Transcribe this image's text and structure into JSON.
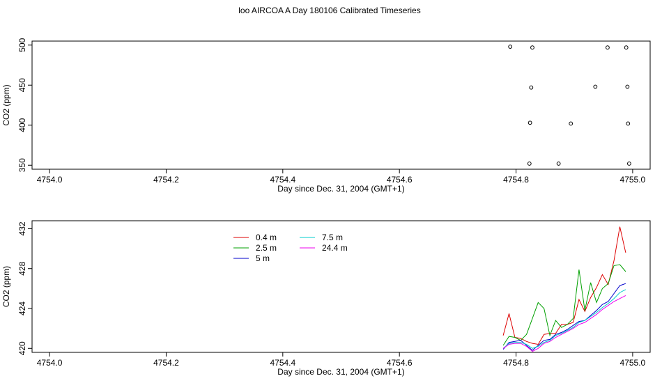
{
  "figure": {
    "title": "loo AIRCOA A  Day 180106  Calibrated Timeseries"
  },
  "chart_data": [
    {
      "type": "scatter",
      "panel": "top",
      "xlabel": "Day since Dec. 31, 2004 (GMT+1)",
      "ylabel": "CO2 (ppm)",
      "xlim": [
        4753.97,
        4755.03
      ],
      "ylim": [
        345,
        505
      ],
      "xticks": [
        4754.0,
        4754.2,
        4754.4,
        4754.6,
        4754.8,
        4755.0
      ],
      "xtick_labels": [
        "4754.0",
        "4754.2",
        "4754.4",
        "4754.6",
        "4754.8",
        "4755.0"
      ],
      "yticks": [
        350,
        400,
        450,
        500
      ],
      "ytick_labels": [
        "350",
        "400",
        "450",
        "500"
      ],
      "grid": false,
      "points": {
        "x": [
          4754.79,
          4754.828,
          4754.957,
          4754.989,
          4754.826,
          4754.936,
          4754.991,
          4754.824,
          4754.894,
          4754.992,
          4754.823,
          4754.873,
          4754.994
        ],
        "y": [
          498,
          497,
          497,
          497,
          447,
          448,
          448,
          403,
          402,
          402,
          352,
          352,
          352
        ]
      }
    },
    {
      "type": "line",
      "panel": "bottom",
      "xlabel": "Day since Dec. 31, 2004 (GMT+1)",
      "ylabel": "CO2 (ppm)",
      "xlim": [
        4753.97,
        4755.03
      ],
      "ylim": [
        419.6,
        432.8
      ],
      "xticks": [
        4754.0,
        4754.2,
        4754.4,
        4754.6,
        4754.8,
        4755.0
      ],
      "xtick_labels": [
        "4754.0",
        "4754.2",
        "4754.4",
        "4754.6",
        "4754.8",
        "4755.0"
      ],
      "yticks": [
        420,
        424,
        428,
        432
      ],
      "ytick_labels": [
        "420",
        "424",
        "428",
        "432"
      ],
      "grid": false,
      "legend": "top-left",
      "x": [
        4754.778,
        4754.788,
        4754.798,
        4754.808,
        4754.818,
        4754.828,
        4754.838,
        4754.848,
        4754.858,
        4754.868,
        4754.878,
        4754.888,
        4754.898,
        4754.908,
        4754.918,
        4754.928,
        4754.938,
        4754.948,
        4754.958,
        4754.968,
        4754.978,
        4754.988
      ],
      "series": [
        {
          "name": "0.4 m",
          "color": "#dd0000",
          "values": [
            421.3,
            423.5,
            421.1,
            421.0,
            420.7,
            420.5,
            420.4,
            421.4,
            421.5,
            421.5,
            422.4,
            422.4,
            422.6,
            424.9,
            423.7,
            425.1,
            426.1,
            427.4,
            426.4,
            428.8,
            432.2,
            429.6
          ]
        },
        {
          "name": "2.5 m",
          "color": "#00a000",
          "values": [
            420.3,
            421.2,
            421.1,
            420.8,
            421.4,
            423.0,
            424.6,
            424.0,
            421.3,
            422.8,
            422.1,
            422.4,
            423.0,
            427.9,
            423.8,
            426.6,
            424.6,
            426.0,
            426.5,
            428.3,
            428.4,
            427.7
          ]
        },
        {
          "name": "5 m",
          "color": "#0000cc",
          "values": [
            419.9,
            420.6,
            420.7,
            420.8,
            420.3,
            419.8,
            420.3,
            420.8,
            420.9,
            421.4,
            421.6,
            421.9,
            422.3,
            422.7,
            422.8,
            423.3,
            423.8,
            424.4,
            424.7,
            425.5,
            426.3,
            426.5
          ]
        },
        {
          "name": "7.5 m",
          "color": "#00cccc",
          "values": [
            420.0,
            420.5,
            420.6,
            420.6,
            420.4,
            420.0,
            420.2,
            420.6,
            420.8,
            421.3,
            421.5,
            421.8,
            422.1,
            422.6,
            422.8,
            423.2,
            423.6,
            424.1,
            424.5,
            425.0,
            425.6,
            425.9
          ]
        },
        {
          "name": "24.4 m",
          "color": "#ee00ee",
          "values": [
            420.0,
            420.4,
            420.5,
            420.5,
            420.2,
            419.7,
            420.0,
            420.5,
            420.7,
            421.1,
            421.4,
            421.7,
            422.0,
            422.4,
            422.6,
            423.0,
            423.4,
            423.9,
            424.3,
            424.7,
            425.0,
            425.3
          ]
        }
      ]
    }
  ]
}
